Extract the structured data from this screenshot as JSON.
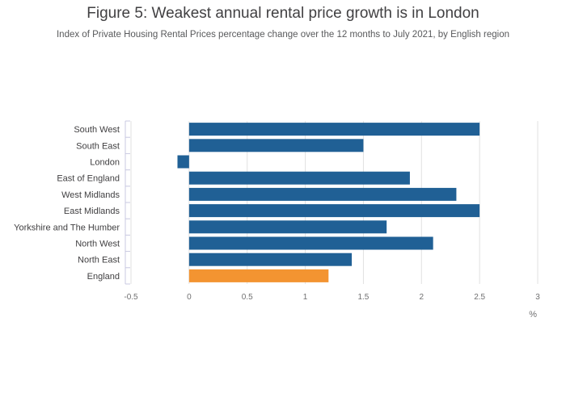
{
  "chart_data": {
    "type": "bar",
    "orientation": "horizontal",
    "title": "Figure 5: Weakest annual rental price growth is in London",
    "subtitle": "Index of Private Housing Rental Prices percentage change over the 12 months to July 2021, by English region",
    "xlabel": "%",
    "ylabel": "",
    "xlim": [
      -0.5,
      3
    ],
    "xticks": [
      "-0.5",
      "0",
      "0.5",
      "1",
      "1.5",
      "2",
      "2.5",
      "3"
    ],
    "grid": true,
    "categories": [
      "South West",
      "South East",
      "London",
      "East of England",
      "West Midlands",
      "East Midlands",
      "Yorkshire and The Humber",
      "North West",
      "North East",
      "England"
    ],
    "values": [
      2.5,
      1.5,
      -0.1,
      1.9,
      2.3,
      2.5,
      1.7,
      2.1,
      1.4,
      1.2
    ],
    "colors": {
      "region": "#206095",
      "England": "#f39431",
      "grid": "#e1e1e1",
      "axis": "#c8c8e0"
    }
  }
}
